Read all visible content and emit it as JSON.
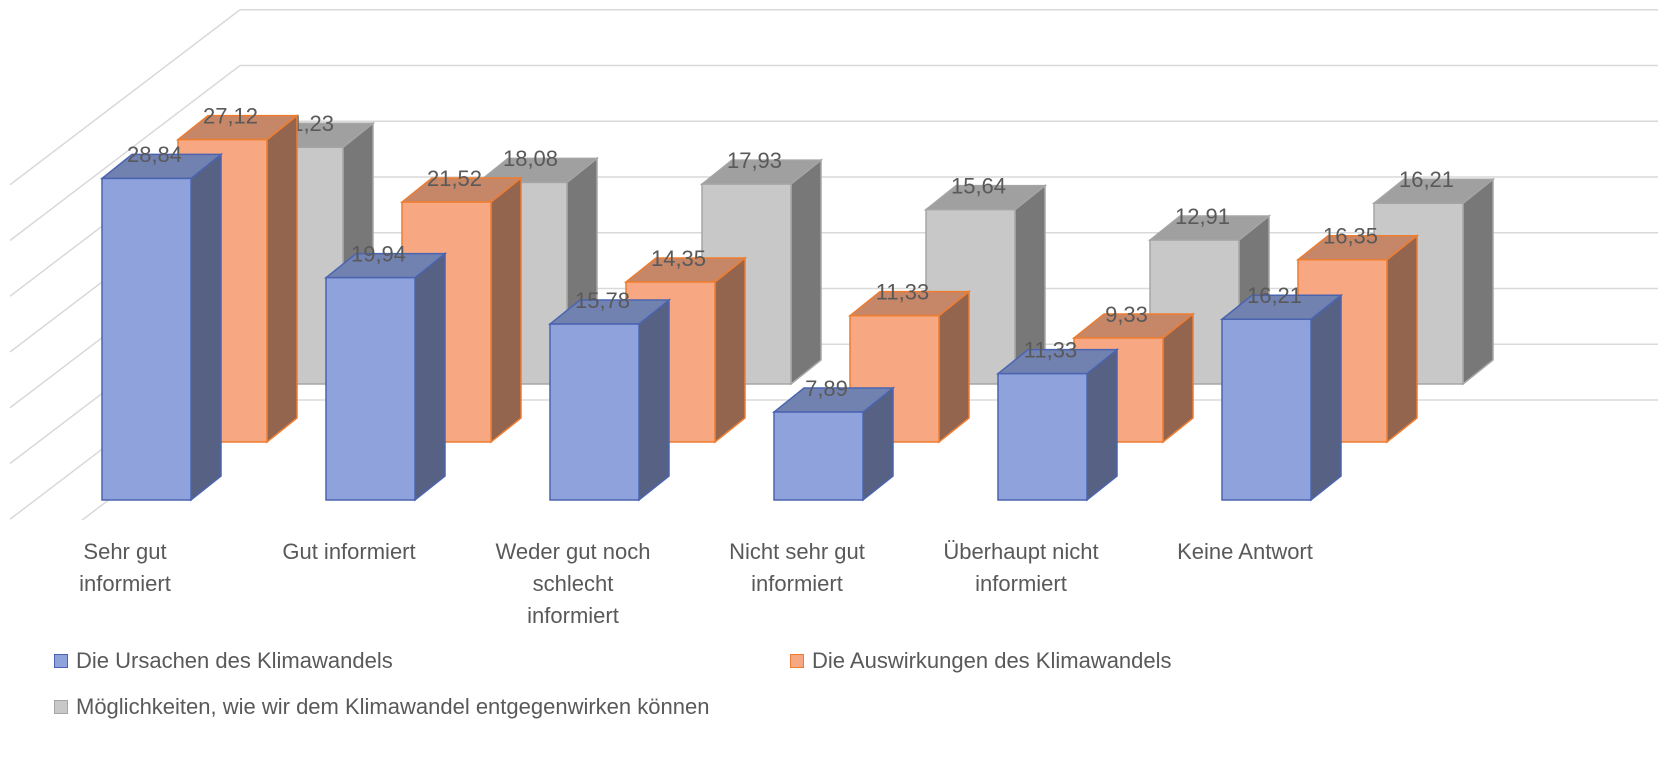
{
  "chart_data": {
    "type": "bar3d",
    "categories": [
      "Sehr gut informiert",
      "Gut informiert",
      "Weder gut noch schlecht informiert",
      "Nicht sehr gut informiert",
      "Überhaupt nicht informiert",
      "Keine Antwort"
    ],
    "series": [
      {
        "name": "Die Ursachen des Klimawandels",
        "color": "#8fa2dc",
        "values": [
          28.84,
          19.94,
          15.78,
          7.89,
          11.33,
          16.21
        ],
        "value_labels": [
          "28,84",
          "19,94",
          "15,78",
          "7,89",
          "11,33",
          "16,21"
        ]
      },
      {
        "name": "Die Auswirkungen des Klimawandels",
        "color": "#f7a882",
        "values": [
          27.12,
          21.52,
          14.35,
          11.33,
          9.33,
          16.35
        ],
        "value_labels": [
          "27,12",
          "21,52",
          "14,35",
          "11,33",
          "9,33",
          "16,35"
        ]
      },
      {
        "name": "Möglichkeiten, wie wir dem Klimawandel entgegenwirken können",
        "color": "#c8c8c8",
        "values": [
          21.23,
          18.08,
          17.93,
          15.64,
          12.91,
          16.21
        ],
        "value_labels": [
          "21,23",
          "18,08",
          "17,93",
          "15,64",
          "12,91",
          "16,21"
        ]
      }
    ],
    "ylim": [
      0,
      35
    ],
    "yticks": [
      0,
      5,
      10,
      15,
      20,
      25,
      30,
      35
    ],
    "grid": true
  }
}
